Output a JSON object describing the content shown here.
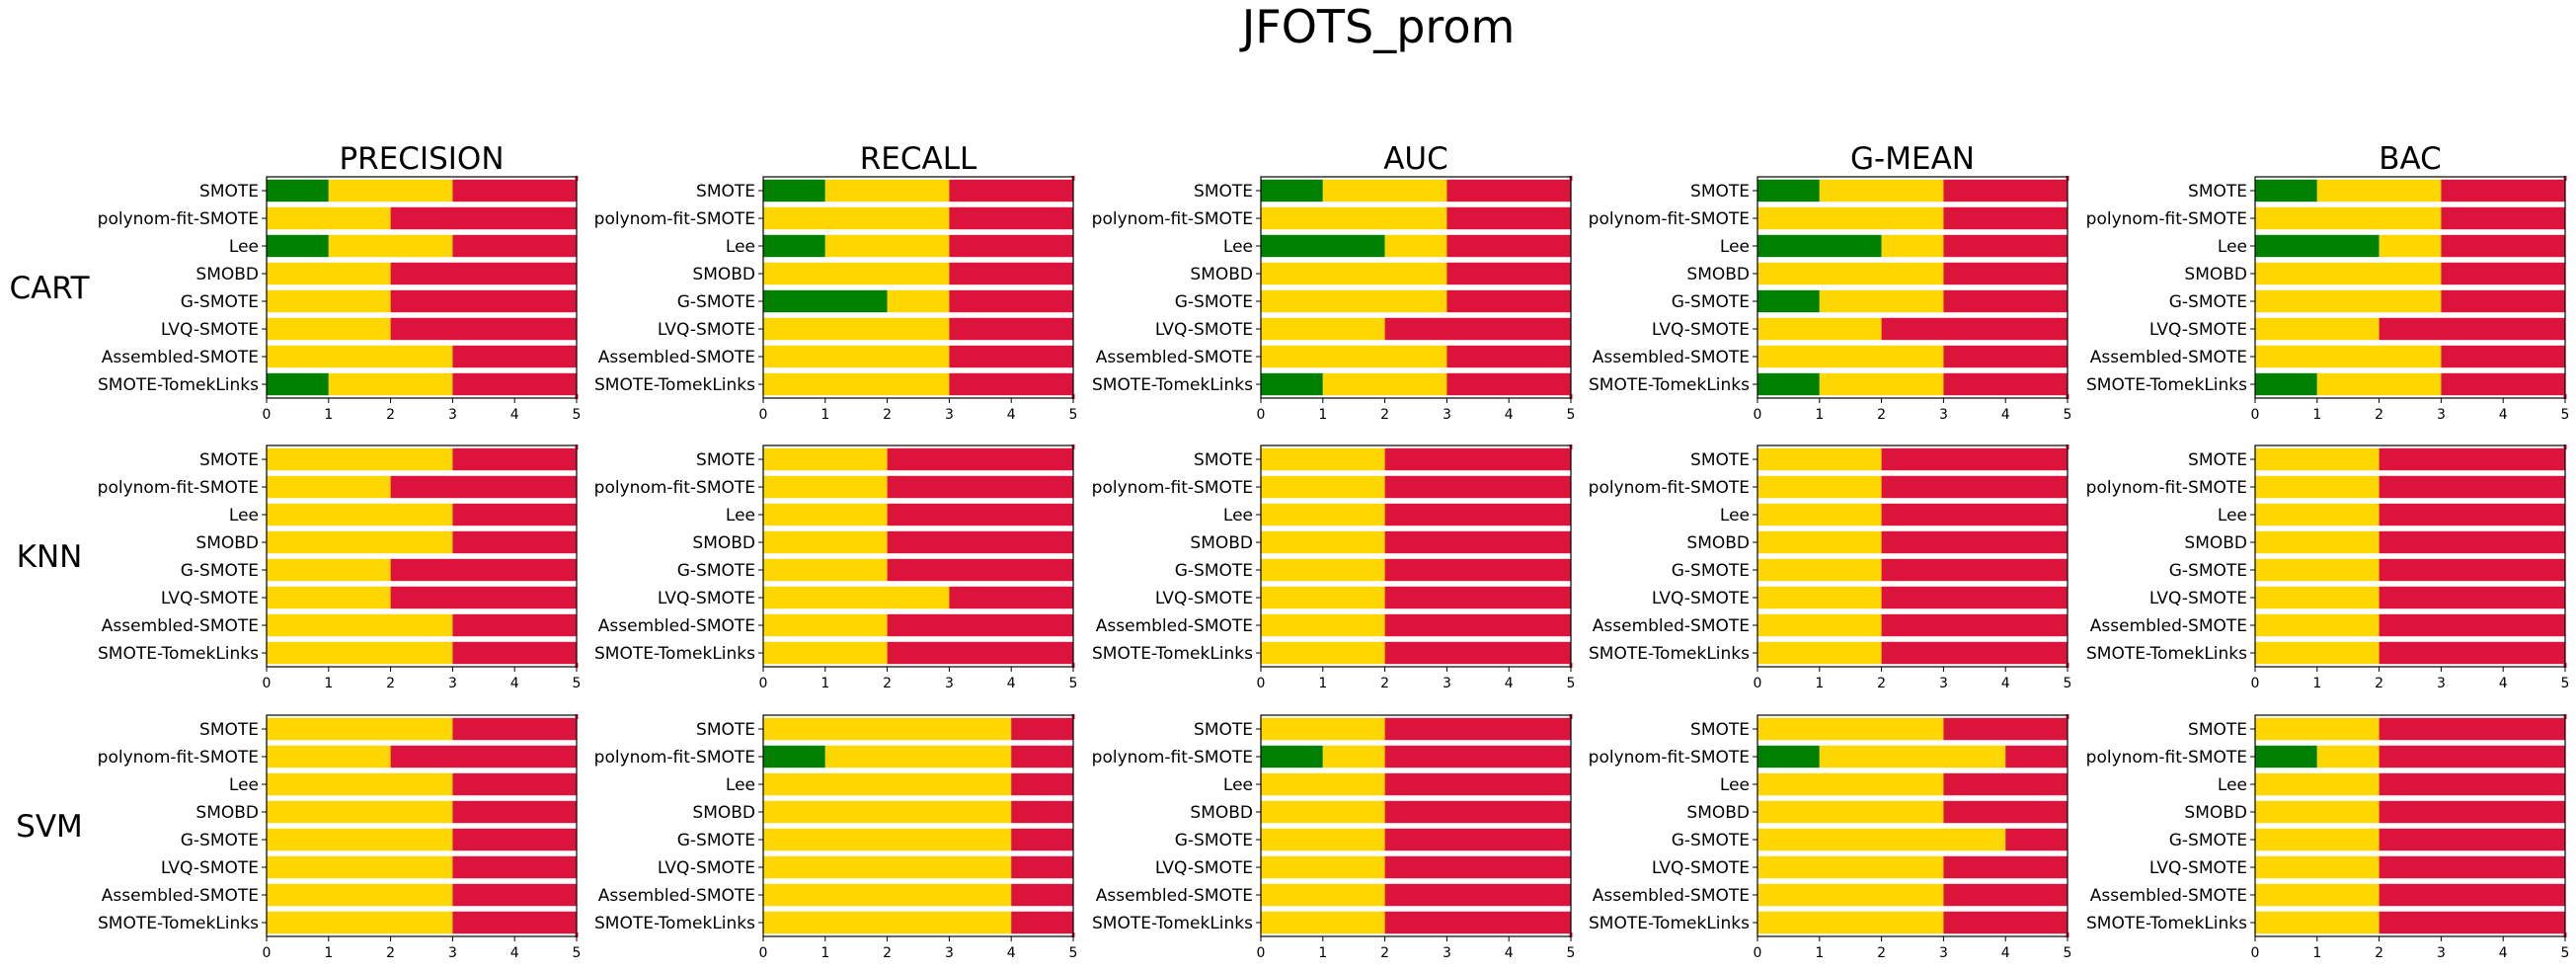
{
  "title": "JFOTS_prom",
  "colors": {
    "green": "#008000",
    "yellow": "#FFD700",
    "red": "#DC143C"
  },
  "chart_data": {
    "type": "bar",
    "orientation": "horizontal-stacked",
    "columns": [
      "PRECISION",
      "RECALL",
      "AUC",
      "G-MEAN",
      "BAC"
    ],
    "rows": [
      "CART",
      "KNN",
      "SVM"
    ],
    "categories": [
      "SMOTE",
      "polynom-fit-SMOTE",
      "Lee",
      "SMOBD",
      "G-SMOTE",
      "LVQ-SMOTE",
      "Assembled-SMOTE",
      "SMOTE-TomekLinks"
    ],
    "xlim": [
      0,
      5
    ],
    "xticks": [
      0,
      1,
      2,
      3,
      4,
      5
    ],
    "segments": [
      "green",
      "yellow",
      "red"
    ],
    "panels": [
      {
        "row": "CART",
        "column": "PRECISION",
        "green": [
          1,
          0,
          1,
          0,
          0,
          0,
          0,
          1
        ],
        "yellow": [
          2,
          2,
          2,
          2,
          2,
          2,
          3,
          2
        ]
      },
      {
        "row": "CART",
        "column": "RECALL",
        "green": [
          1,
          0,
          1,
          0,
          2,
          0,
          0,
          0
        ],
        "yellow": [
          2,
          3,
          2,
          3,
          1,
          3,
          3,
          3
        ]
      },
      {
        "row": "CART",
        "column": "AUC",
        "green": [
          1,
          0,
          2,
          0,
          0,
          0,
          0,
          1
        ],
        "yellow": [
          2,
          3,
          1,
          3,
          3,
          2,
          3,
          2
        ]
      },
      {
        "row": "CART",
        "column": "G-MEAN",
        "green": [
          1,
          0,
          2,
          0,
          1,
          0,
          0,
          1
        ],
        "yellow": [
          2,
          3,
          1,
          3,
          2,
          2,
          3,
          2
        ]
      },
      {
        "row": "CART",
        "column": "BAC",
        "green": [
          1,
          0,
          2,
          0,
          0,
          0,
          0,
          1
        ],
        "yellow": [
          2,
          3,
          1,
          3,
          3,
          2,
          3,
          2
        ]
      },
      {
        "row": "KNN",
        "column": "PRECISION",
        "green": [
          0,
          0,
          0,
          0,
          0,
          0,
          0,
          0
        ],
        "yellow": [
          3,
          2,
          3,
          3,
          2,
          2,
          3,
          3
        ]
      },
      {
        "row": "KNN",
        "column": "RECALL",
        "green": [
          0,
          0,
          0,
          0,
          0,
          0,
          0,
          0
        ],
        "yellow": [
          2,
          2,
          2,
          2,
          2,
          3,
          2,
          2
        ]
      },
      {
        "row": "KNN",
        "column": "AUC",
        "green": [
          0,
          0,
          0,
          0,
          0,
          0,
          0,
          0
        ],
        "yellow": [
          2,
          2,
          2,
          2,
          2,
          2,
          2,
          2
        ]
      },
      {
        "row": "KNN",
        "column": "G-MEAN",
        "green": [
          0,
          0,
          0,
          0,
          0,
          0,
          0,
          0
        ],
        "yellow": [
          2,
          2,
          2,
          2,
          2,
          2,
          2,
          2
        ]
      },
      {
        "row": "KNN",
        "column": "BAC",
        "green": [
          0,
          0,
          0,
          0,
          0,
          0,
          0,
          0
        ],
        "yellow": [
          2,
          2,
          2,
          2,
          2,
          2,
          2,
          2
        ]
      },
      {
        "row": "SVM",
        "column": "PRECISION",
        "green": [
          0,
          0,
          0,
          0,
          0,
          0,
          0,
          0
        ],
        "yellow": [
          3,
          2,
          3,
          3,
          3,
          3,
          3,
          3
        ]
      },
      {
        "row": "SVM",
        "column": "RECALL",
        "green": [
          0,
          1,
          0,
          0,
          0,
          0,
          0,
          0
        ],
        "yellow": [
          4,
          3,
          4,
          4,
          4,
          4,
          4,
          4
        ]
      },
      {
        "row": "SVM",
        "column": "AUC",
        "green": [
          0,
          1,
          0,
          0,
          0,
          0,
          0,
          0
        ],
        "yellow": [
          2,
          1,
          2,
          2,
          2,
          2,
          2,
          2
        ]
      },
      {
        "row": "SVM",
        "column": "G-MEAN",
        "green": [
          0,
          1,
          0,
          0,
          0,
          0,
          0,
          0
        ],
        "yellow": [
          3,
          3,
          3,
          3,
          4,
          3,
          3,
          3
        ]
      },
      {
        "row": "SVM",
        "column": "BAC",
        "green": [
          0,
          1,
          0,
          0,
          0,
          0,
          0,
          0
        ],
        "yellow": [
          2,
          1,
          2,
          2,
          2,
          2,
          2,
          2
        ]
      }
    ]
  }
}
